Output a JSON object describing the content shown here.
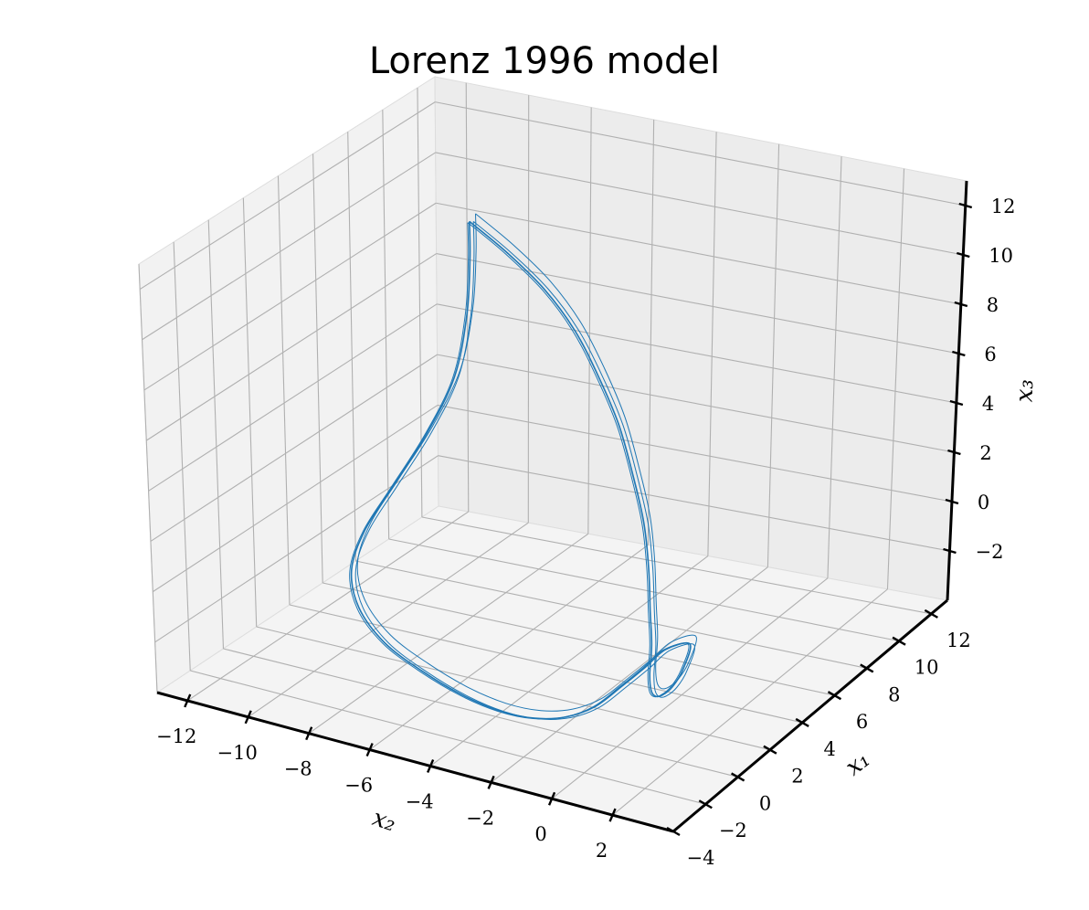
{
  "chart_data": {
    "type": "line3d",
    "title": "Lorenz 1996 model",
    "xlabel": "x_2",
    "ylabel": "x_1",
    "zlabel": "x_3",
    "axis_labels": {
      "x": "x₂",
      "y": "x₁",
      "z": "x₃"
    },
    "xlim": [
      -13,
      4
    ],
    "ylim": [
      -4,
      13
    ],
    "zlim": [
      -4,
      13
    ],
    "xticks": [
      -12,
      -10,
      -8,
      -6,
      -4,
      -2,
      0,
      2
    ],
    "yticks": [
      -4,
      -2,
      0,
      2,
      4,
      6,
      8,
      10,
      12
    ],
    "zticks": [
      -2,
      0,
      2,
      4,
      6,
      8,
      10,
      12
    ],
    "xtick_labels": [
      "−12",
      "−10",
      "−8",
      "−6",
      "−4",
      "−2",
      "0",
      "2"
    ],
    "ytick_labels": [
      "−4",
      "−2",
      "0",
      "2",
      "4",
      "6",
      "8",
      "10",
      "12"
    ],
    "ztick_labels": [
      "−2",
      "0",
      "2",
      "4",
      "6",
      "8",
      "10",
      "12"
    ],
    "grid": true,
    "series": [
      {
        "name": "trajectory",
        "color": "#1f77b4",
        "description": "3-variable Lorenz-96 attractor trajectory; several near-overlapping loops",
        "points": [
          [
            -10.5,
            10.6,
            8.9
          ],
          [
            -9.6,
            11.2,
            7.6
          ],
          [
            -8.6,
            11.6,
            6.2
          ],
          [
            -7.6,
            11.6,
            4.8
          ],
          [
            -6.6,
            11.2,
            3.4
          ],
          [
            -5.6,
            10.6,
            2.0
          ],
          [
            -4.7,
            9.8,
            0.6
          ],
          [
            -3.8,
            8.8,
            -0.6
          ],
          [
            -3.0,
            7.6,
            -1.6
          ],
          [
            -2.2,
            6.2,
            -2.4
          ],
          [
            -1.4,
            4.8,
            -2.8
          ],
          [
            -0.6,
            3.2,
            -2.9
          ],
          [
            0.2,
            1.8,
            -2.6
          ],
          [
            1.0,
            0.6,
            -2.0
          ],
          [
            1.8,
            -0.4,
            -1.2
          ],
          [
            2.6,
            -1.2,
            -0.2
          ],
          [
            3.3,
            -1.8,
            1.0
          ],
          [
            3.8,
            -2.2,
            2.4
          ],
          [
            3.2,
            -2.6,
            2.2
          ],
          [
            2.6,
            -2.8,
            1.4
          ],
          [
            1.8,
            -2.8,
            0.4
          ],
          [
            0.8,
            -2.6,
            -0.8
          ],
          [
            -0.4,
            -2.2,
            -1.8
          ],
          [
            -1.8,
            -1.6,
            -2.6
          ],
          [
            -3.4,
            -0.8,
            -3.2
          ],
          [
            -5.2,
            0.2,
            -3.6
          ],
          [
            -7.2,
            1.4,
            -3.8
          ],
          [
            -9.2,
            2.8,
            -3.9
          ],
          [
            -10.8,
            4.2,
            -3.6
          ],
          [
            -11.8,
            5.6,
            -3.0
          ],
          [
            -12.0,
            6.8,
            -2.0
          ],
          [
            -11.6,
            7.8,
            -0.6
          ],
          [
            -11.0,
            8.8,
            1.2
          ],
          [
            -10.5,
            9.6,
            3.2
          ],
          [
            -10.4,
            10.2,
            5.4
          ],
          [
            -10.5,
            10.6,
            7.4
          ],
          [
            -10.5,
            10.6,
            8.9
          ]
        ]
      }
    ]
  }
}
